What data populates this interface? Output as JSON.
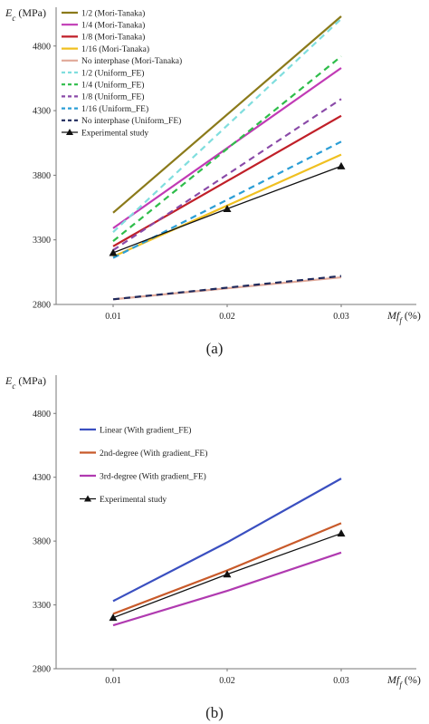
{
  "chart_data": [
    {
      "type": "line",
      "panel_label": "(a)",
      "ylabel": "E_c (MPa)",
      "xlabel": "Mf_f (%)",
      "categories": [
        "0.01",
        "0.02",
        "0.03"
      ],
      "x": [
        0.01,
        0.02,
        0.03
      ],
      "xlim": [
        0.005,
        0.035
      ],
      "ylim": [
        2800,
        5100
      ],
      "yticks": [
        2800,
        3300,
        3800,
        4300,
        4800
      ],
      "grid": false,
      "legend": "top-left",
      "series": [
        {
          "name": "1/2 (Mori-Tanaka)",
          "color": "#8b7a1a",
          "dash": "solid",
          "marker": "",
          "values": [
            3510,
            null,
            5030
          ]
        },
        {
          "name": "1/4 (Mori-Tanaka)",
          "color": "#c13ab5",
          "dash": "solid",
          "marker": "",
          "values": [
            3390,
            null,
            4630
          ]
        },
        {
          "name": "1/8 (Mori-Tanaka)",
          "color": "#c01f28",
          "dash": "solid",
          "marker": "",
          "values": [
            3250,
            null,
            4260
          ]
        },
        {
          "name": "1/16 (Mori-Tanaka)",
          "color": "#f0c020",
          "dash": "solid",
          "marker": "",
          "values": [
            3170,
            null,
            3960
          ]
        },
        {
          "name": "No interphase (Mori-Tanaka)",
          "color": "#e0a898",
          "dash": "solid",
          "marker": "",
          "values": [
            2840,
            null,
            3010
          ]
        },
        {
          "name": "1/2 (Uniform_FE)",
          "color": "#80dede",
          "dash": "dashed",
          "marker": "",
          "values": [
            3360,
            null,
            5010
          ]
        },
        {
          "name": "1/4 (Uniform_FE)",
          "color": "#2ebd4a",
          "dash": "dashed",
          "marker": "",
          "values": [
            3290,
            null,
            4720
          ]
        },
        {
          "name": "1/8 (Uniform_FE)",
          "color": "#8a4aa8",
          "dash": "dashed",
          "marker": "",
          "values": [
            3220,
            null,
            4390
          ]
        },
        {
          "name": "1/16 (Uniform_FE)",
          "color": "#2b9ed6",
          "dash": "dashed",
          "marker": "",
          "values": [
            3160,
            null,
            4060
          ]
        },
        {
          "name": "No interphase (Uniform_FE)",
          "color": "#1f2a5c",
          "dash": "dashed",
          "marker": "",
          "values": [
            2840,
            null,
            3020
          ]
        },
        {
          "name": "Experimental study",
          "color": "#111111",
          "dash": "solid",
          "marker": "triangle",
          "values": [
            3200,
            3540,
            3870
          ]
        }
      ]
    },
    {
      "type": "line",
      "panel_label": "(b)",
      "ylabel": "E_c (MPa)",
      "xlabel": "Mf_f (%)",
      "categories": [
        "0.01",
        "0.02",
        "0.03"
      ],
      "x": [
        0.01,
        0.02,
        0.03
      ],
      "xlim": [
        0.005,
        0.035
      ],
      "ylim": [
        2800,
        5100
      ],
      "yticks": [
        2800,
        3300,
        3800,
        4300,
        4800
      ],
      "grid": false,
      "legend": "top-left",
      "series": [
        {
          "name": "Linear (With gradient_FE)",
          "color": "#3a4fc0",
          "dash": "solid",
          "marker": "",
          "values": [
            3330,
            3790,
            4290
          ]
        },
        {
          "name": "2nd-degree (With gradient_FE)",
          "color": "#c85a2a",
          "dash": "solid",
          "marker": "",
          "values": [
            3230,
            3570,
            3940
          ]
        },
        {
          "name": "3rd-degree (With gradient_FE)",
          "color": "#b03ab0",
          "dash": "solid",
          "marker": "",
          "values": [
            3140,
            3410,
            3710
          ]
        },
        {
          "name": "Experimental study",
          "color": "#111111",
          "dash": "solid",
          "marker": "triangle",
          "values": [
            3200,
            3540,
            3860
          ]
        }
      ]
    }
  ]
}
